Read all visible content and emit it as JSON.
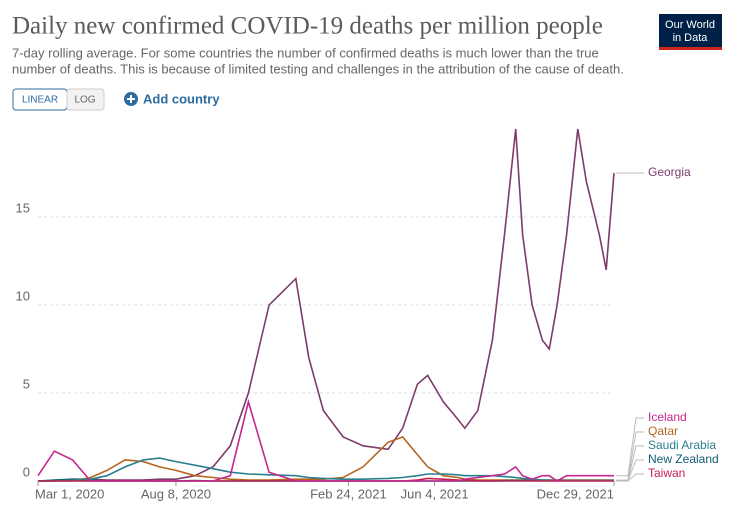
{
  "header": {
    "title": "Daily new confirmed COVID-19 deaths per million people",
    "subtitle": [
      "7-day rolling average. For some countries the number of confirmed deaths is much lower than the true",
      "number of deaths. This is because of limited testing and challenges in the attribution of the cause of death."
    ],
    "logo": [
      "Our World",
      "in Data"
    ]
  },
  "controls": {
    "scale_buttons": [
      "LINEAR",
      "LOG"
    ],
    "add_country": "Add country"
  },
  "chart_data": {
    "type": "line",
    "x": [
      "2020-03-01",
      "2020-03-20",
      "2020-04-10",
      "2020-05-01",
      "2020-05-20",
      "2020-06-10",
      "2020-07-01",
      "2020-07-20",
      "2020-08-08",
      "2020-08-30",
      "2020-09-20",
      "2020-10-10",
      "2020-10-31",
      "2020-11-24",
      "2020-12-25",
      "2021-01-09",
      "2021-01-26",
      "2021-02-18",
      "2021-03-13",
      "2021-04-11",
      "2021-04-28",
      "2021-05-15",
      "2021-05-27",
      "2021-06-14",
      "2021-07-01",
      "2021-07-09",
      "2021-07-24",
      "2021-08-10",
      "2021-08-24",
      "2021-09-06",
      "2021-09-14",
      "2021-09-25",
      "2021-10-07",
      "2021-10-15",
      "2021-10-24",
      "2021-11-04",
      "2021-11-17",
      "2021-11-27",
      "2021-12-12",
      "2021-12-20",
      "2021-12-29"
    ],
    "xlim": [
      "2020-03-01",
      "2021-12-29"
    ],
    "xticks": [
      {
        "value": "2020-03-01",
        "label": "Mar 1, 2020"
      },
      {
        "value": "2020-08-08",
        "label": "Aug 8, 2020"
      },
      {
        "value": "2021-02-24",
        "label": "Feb 24, 2021"
      },
      {
        "value": "2021-06-04",
        "label": "Jun 4, 2021"
      },
      {
        "value": "2021-12-29",
        "label": "Dec 29, 2021"
      }
    ],
    "ylim": [
      0,
      20
    ],
    "yticks": [
      0,
      5,
      10,
      15
    ],
    "grid": true,
    "series": [
      {
        "name": "Georgia",
        "color": "#7d3b6b",
        "values": [
          0,
          0,
          0.1,
          0.1,
          0.05,
          0.05,
          0.05,
          0.1,
          0.1,
          0.3,
          0.8,
          2,
          5,
          10,
          11.5,
          7,
          4,
          2.5,
          2,
          1.8,
          3,
          5.5,
          6,
          4.5,
          3.5,
          3,
          4,
          8,
          14,
          20,
          14,
          10,
          8,
          7.5,
          10,
          14,
          20,
          17,
          14,
          12,
          17.5
        ]
      },
      {
        "name": "Qatar",
        "color": "#b5651d",
        "values": [
          0,
          0,
          0,
          0.2,
          0.6,
          1.2,
          1.1,
          0.8,
          0.6,
          0.3,
          0.2,
          0.1,
          0.05,
          0.05,
          0.1,
          0.1,
          0.1,
          0.2,
          0.8,
          2.2,
          2.5,
          1.5,
          0.8,
          0.3,
          0.2,
          0.1,
          0.05,
          0.05,
          0.05,
          0.05,
          0.05,
          0.05,
          0.05,
          0.05,
          0.05,
          0.05,
          0.05,
          0.05,
          0.05,
          0.05,
          0.05
        ]
      },
      {
        "name": "New Zealand",
        "color": "#0f5d73",
        "values": [
          0,
          0.05,
          0.1,
          0.05,
          0,
          0,
          0,
          0,
          0,
          0.02,
          0,
          0,
          0,
          0,
          0,
          0,
          0,
          0,
          0,
          0,
          0,
          0,
          0,
          0,
          0,
          0,
          0,
          0,
          0.02,
          0.03,
          0.02,
          0.02,
          0.02,
          0.02,
          0.02,
          0.02,
          0.02,
          0.02,
          0.02,
          0.02,
          0.02
        ]
      },
      {
        "name": "Saudi Arabia",
        "color": "#2a7f8c",
        "values": [
          0,
          0,
          0.05,
          0.1,
          0.3,
          0.8,
          1.2,
          1.3,
          1.1,
          0.9,
          0.7,
          0.5,
          0.4,
          0.35,
          0.3,
          0.2,
          0.15,
          0.1,
          0.1,
          0.15,
          0.2,
          0.3,
          0.4,
          0.4,
          0.35,
          0.3,
          0.3,
          0.3,
          0.25,
          0.2,
          0.15,
          0.1,
          0.05,
          0.05,
          0.03,
          0.03,
          0.03,
          0.03,
          0.03,
          0.03,
          0.03
        ]
      },
      {
        "name": "Taiwan",
        "color": "#c0224f",
        "values": [
          0,
          0,
          0,
          0,
          0,
          0,
          0,
          0,
          0,
          0,
          0,
          0,
          0,
          0,
          0,
          0,
          0,
          0,
          0,
          0,
          0,
          0.05,
          0.15,
          0.1,
          0.05,
          0.02,
          0.01,
          0,
          0,
          0,
          0,
          0,
          0,
          0,
          0,
          0,
          0,
          0,
          0,
          0,
          0
        ]
      },
      {
        "name": "Iceland",
        "color": "#c4278f",
        "values": [
          0.3,
          1.7,
          1.2,
          0,
          0,
          0,
          0,
          0,
          0,
          0,
          0,
          0.3,
          4.5,
          0.5,
          0,
          0,
          0,
          0,
          0,
          0,
          0,
          0,
          0,
          0,
          0,
          0.1,
          0.2,
          0.3,
          0.4,
          0.8,
          0.3,
          0.1,
          0.3,
          0.3,
          0,
          0.3,
          0.3,
          0.3,
          0.3,
          0.3,
          0.3
        ]
      }
    ]
  }
}
